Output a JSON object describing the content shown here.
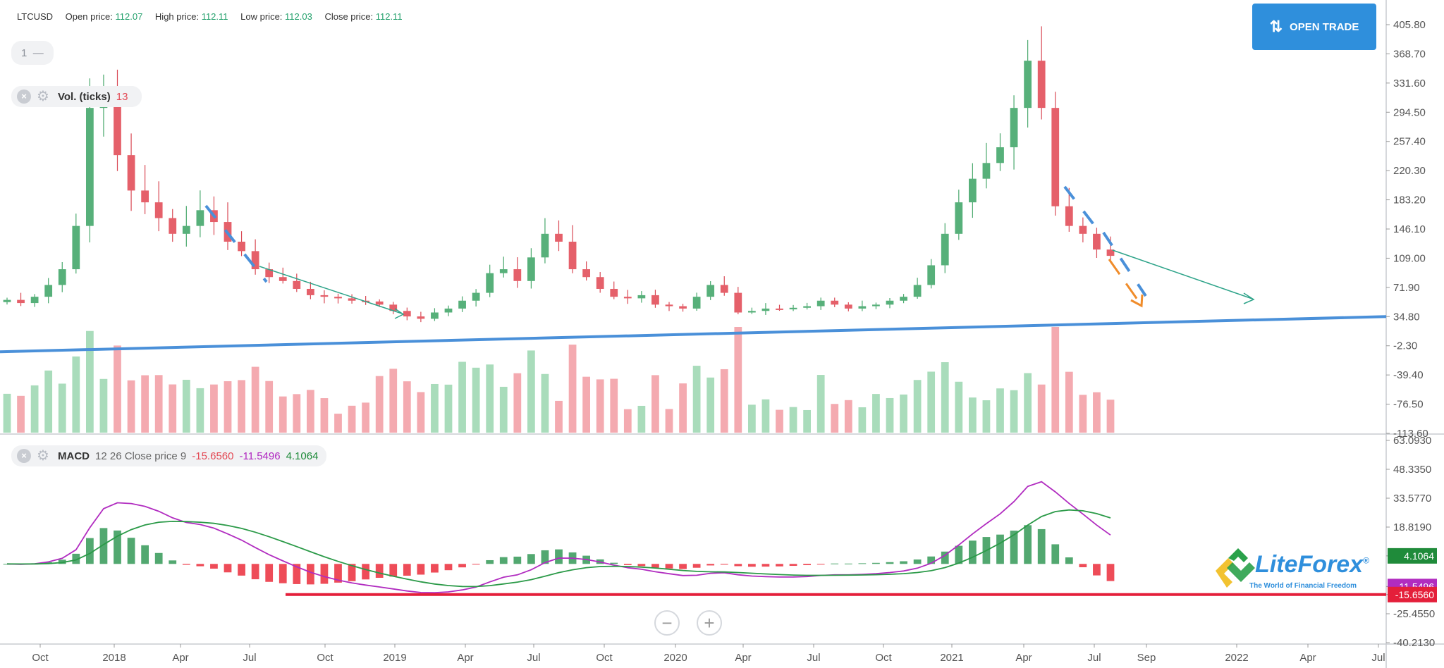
{
  "header": {
    "symbol": "LTCUSD",
    "open_label": "Open price:",
    "open_value": "112.07",
    "high_label": "High price:",
    "high_value": "112.11",
    "low_label": "Low price:",
    "low_value": "112.03",
    "close_label": "Close price:",
    "close_value": "112.11"
  },
  "interval": {
    "label": "1",
    "dash": "—"
  },
  "volume_indicator": {
    "name": "Vol. (ticks)",
    "value": "13"
  },
  "macd_indicator": {
    "name": "MACD",
    "params": "12 26 Close price 9",
    "macd": "-15.6560",
    "signal": "-11.5496",
    "hist": "4.1064"
  },
  "open_trade": {
    "label": "OPEN TRADE"
  },
  "zoom": {
    "minus": "−",
    "plus": "+"
  },
  "logo": {
    "text": "LiteForex",
    "reg": "®",
    "tagline": "The World of Financial Freedom"
  },
  "colors": {
    "up": "#7dc79a",
    "down": "#e5606a",
    "trend": "#4a90d9",
    "macd": "#b12cc0",
    "signal": "#2b9a48",
    "support": "#e41f3a",
    "orange": "#f08c2a"
  },
  "chart_data": [
    {
      "type": "candlestick",
      "symbol": "LTCUSD",
      "x_ticks": [
        "Oct",
        "2018",
        "Apr",
        "Jul",
        "Oct",
        "2019",
        "Apr",
        "Jul",
        "Oct",
        "2020",
        "Apr",
        "Jul",
        "Oct",
        "2021",
        "Apr",
        "Jul",
        "Sep",
        "2022",
        "Apr",
        "Jul"
      ],
      "y_ticks": [
        "405.80",
        "368.70",
        "331.60",
        "294.50",
        "257.40",
        "220.30",
        "183.20",
        "146.10",
        "109.00",
        "71.90",
        "34.80",
        "-2.30",
        "-39.40",
        "-76.50",
        "-113.60"
      ],
      "ylim": [
        -113.6,
        405.8
      ],
      "close_approx": [
        56,
        52,
        60,
        75,
        95,
        150,
        300,
        320,
        240,
        195,
        180,
        160,
        140,
        150,
        170,
        155,
        130,
        118,
        95,
        85,
        80,
        70,
        62,
        60,
        58,
        55,
        54,
        50,
        42,
        35,
        32,
        40,
        45,
        55,
        65,
        90,
        95,
        80,
        110,
        140,
        130,
        95,
        85,
        70,
        60,
        58,
        62,
        50,
        48,
        45,
        60,
        75,
        65,
        40,
        42,
        45,
        44,
        46,
        48,
        55,
        50,
        45,
        48,
        50,
        55,
        60,
        75,
        100,
        140,
        180,
        210,
        230,
        250,
        300,
        360,
        300,
        175,
        150,
        140,
        120,
        112
      ],
      "trend_annotations": "blue dashed down-trend segments, green arrow projections, orange arrow",
      "support_line": "blue ascending support line"
    },
    {
      "type": "bar",
      "name": "Vol. (ticks)",
      "last_value": 13
    },
    {
      "type": "line",
      "name": "MACD 12 26 Close price 9",
      "y_ticks": [
        "63.0930",
        "48.3350",
        "33.5770",
        "18.8190",
        "4.1064",
        "-11.5496",
        "-15.6560",
        "-25.4550",
        "-40.2130"
      ],
      "ylim": [
        -40.213,
        63.093
      ],
      "series": [
        {
          "name": "MACD",
          "last": -15.656
        },
        {
          "name": "Signal",
          "last": -11.5496
        },
        {
          "name": "Histogram",
          "last": 4.1064
        }
      ]
    }
  ]
}
